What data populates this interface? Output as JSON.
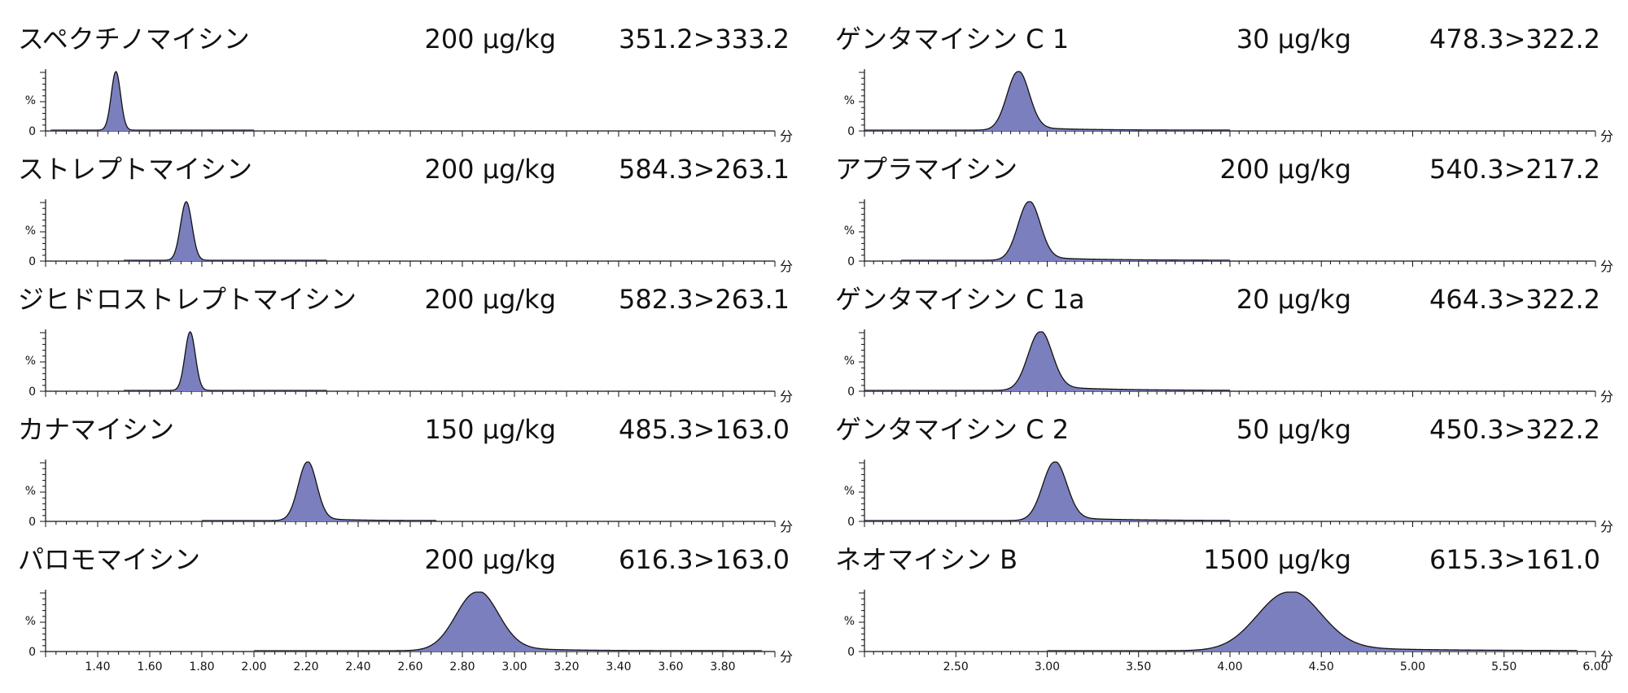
{
  "y_axis_labels": {
    "percent": "%",
    "zero": "0"
  },
  "x_unit": "分",
  "colors": {
    "peak_fill": "#7b7fbd",
    "line": "#111111"
  },
  "chart_data": [
    {
      "type": "area",
      "title": "スペクチノマイシン",
      "concentration": "200 µg/kg",
      "mrm": "351.2>333.2",
      "xlim": [
        1.2,
        4.0
      ],
      "ylim": [
        0,
        100
      ],
      "trace_range": [
        1.22,
        2.0
      ],
      "peak": {
        "rt": 1.47,
        "width": 0.018,
        "tail": 0,
        "tail_width": 0.05
      },
      "xticks": []
    },
    {
      "type": "area",
      "title": "ストレプトマイシン",
      "concentration": "200 µg/kg",
      "mrm": "584.3>263.1",
      "xlim": [
        1.2,
        4.0
      ],
      "ylim": [
        0,
        100
      ],
      "trace_range": [
        1.5,
        2.28
      ],
      "peak": {
        "rt": 1.74,
        "width": 0.022,
        "tail": 0,
        "tail_width": 0.05
      },
      "xticks": []
    },
    {
      "type": "area",
      "title": "ジヒドロストレプトマイシン",
      "concentration": "200 µg/kg",
      "mrm": "582.3>263.1",
      "xlim": [
        1.2,
        4.0
      ],
      "ylim": [
        0,
        100
      ],
      "trace_range": [
        1.5,
        2.28
      ],
      "peak": {
        "rt": 1.755,
        "width": 0.02,
        "tail": 0,
        "tail_width": 0.05
      },
      "xticks": []
    },
    {
      "type": "area",
      "title": "カナマイシン",
      "concentration": "150 µg/kg",
      "mrm": "485.3>163.0",
      "xlim": [
        1.2,
        4.0
      ],
      "ylim": [
        0,
        100
      ],
      "trace_range": [
        1.8,
        2.7
      ],
      "peak": {
        "rt": 2.205,
        "width": 0.035,
        "tail": 0.05,
        "tail_width": 0.12
      },
      "xticks": []
    },
    {
      "type": "area",
      "title": "パロモマイシン",
      "concentration": "200 µg/kg",
      "mrm": "616.3>163.0",
      "xlim": [
        1.2,
        4.0
      ],
      "ylim": [
        0,
        100
      ],
      "trace_range": [
        2.0,
        3.95
      ],
      "peak": {
        "rt": 2.855,
        "width": 0.08,
        "tail": 0.1,
        "tail_width": 0.18
      },
      "xticks": [
        "1.40",
        "1.60",
        "1.80",
        "2.00",
        "2.20",
        "2.40",
        "2.60",
        "2.80",
        "3.00",
        "3.20",
        "3.40",
        "3.60",
        "3.80"
      ]
    },
    {
      "type": "area",
      "title": "ゲンタマイシン C 1",
      "concentration": "30 µg/kg",
      "mrm": "478.3>322.2",
      "xlim": [
        2.0,
        6.0
      ],
      "ylim": [
        0,
        100
      ],
      "trace_range": [
        2.0,
        4.0
      ],
      "peak": {
        "rt": 2.84,
        "width": 0.06,
        "tail": 0.06,
        "tail_width": 0.25
      },
      "xticks": []
    },
    {
      "type": "area",
      "title": "アプラマイシン",
      "concentration": "200 µg/kg",
      "mrm": "540.3>217.2",
      "xlim": [
        2.0,
        6.0
      ],
      "ylim": [
        0,
        100
      ],
      "trace_range": [
        2.2,
        4.0
      ],
      "peak": {
        "rt": 2.9,
        "width": 0.06,
        "tail": 0.06,
        "tail_width": 0.3
      },
      "xticks": []
    },
    {
      "type": "area",
      "title": "ゲンタマイシン C 1a",
      "concentration": "20 µg/kg",
      "mrm": "464.3>322.2",
      "xlim": [
        2.0,
        6.0
      ],
      "ylim": [
        0,
        100
      ],
      "trace_range": [
        2.0,
        4.0
      ],
      "peak": {
        "rt": 2.96,
        "width": 0.065,
        "tail": 0.08,
        "tail_width": 0.3
      },
      "xticks": []
    },
    {
      "type": "area",
      "title": "ゲンタマイシン C 2",
      "concentration": "50 µg/kg",
      "mrm": "450.3>322.2",
      "xlim": [
        2.0,
        6.0
      ],
      "ylim": [
        0,
        100
      ],
      "trace_range": [
        2.0,
        4.0
      ],
      "peak": {
        "rt": 3.04,
        "width": 0.065,
        "tail": 0.06,
        "tail_width": 0.3
      },
      "xticks": []
    },
    {
      "type": "area",
      "title": "ネオマイシン B",
      "concentration": "1500 µg/kg",
      "mrm": "615.3>161.0",
      "xlim": [
        2.0,
        6.0
      ],
      "ylim": [
        0,
        100
      ],
      "trace_range": [
        3.0,
        5.9
      ],
      "peak": {
        "rt": 4.32,
        "width": 0.17,
        "tail": 0.1,
        "tail_width": 0.45
      },
      "xticks": [
        "2.50",
        "3.00",
        "3.50",
        "4.00",
        "4.50",
        "5.00",
        "5.50",
        "6.00"
      ]
    }
  ]
}
